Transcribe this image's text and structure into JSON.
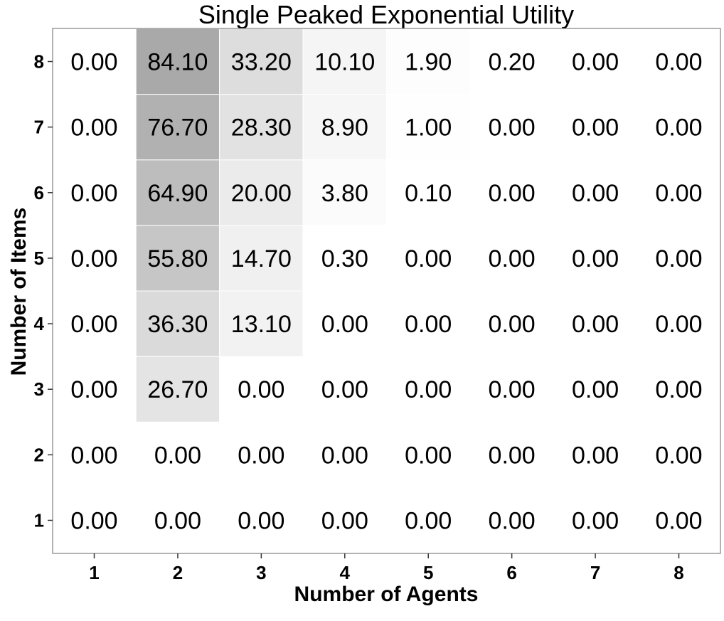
{
  "chart_data": {
    "type": "heatmap",
    "title": "Single Peaked Exponential Utility",
    "xlabel": "Number of Agents",
    "ylabel": "Number of Items",
    "x_categories": [
      "1",
      "2",
      "3",
      "4",
      "5",
      "6",
      "7",
      "8"
    ],
    "y_categories": [
      "1",
      "2",
      "3",
      "4",
      "5",
      "6",
      "7",
      "8"
    ],
    "value_range": [
      0,
      100
    ],
    "color_low": "#ffffff",
    "color_high": "#999999",
    "grid": true,
    "legend": "none",
    "values": [
      [
        0,
        0,
        0,
        0,
        0,
        0,
        0,
        0
      ],
      [
        0,
        0,
        0,
        0,
        0,
        0,
        0,
        0
      ],
      [
        0,
        26.7,
        0,
        0,
        0,
        0,
        0,
        0
      ],
      [
        0,
        36.3,
        13.1,
        0,
        0,
        0,
        0,
        0
      ],
      [
        0,
        55.8,
        14.7,
        0.3,
        0,
        0,
        0,
        0
      ],
      [
        0,
        64.9,
        20.0,
        3.8,
        0.1,
        0,
        0,
        0
      ],
      [
        0,
        76.7,
        28.3,
        8.9,
        1.0,
        0,
        0,
        0
      ],
      [
        0,
        84.1,
        33.2,
        10.1,
        1.9,
        0.2,
        0,
        0
      ]
    ],
    "labels": [
      [
        "0.00",
        "0.00",
        "0.00",
        "0.00",
        "0.00",
        "0.00",
        "0.00",
        "0.00"
      ],
      [
        "0.00",
        "0.00",
        "0.00",
        "0.00",
        "0.00",
        "0.00",
        "0.00",
        "0.00"
      ],
      [
        "0.00",
        "26.70",
        "0.00",
        "0.00",
        "0.00",
        "0.00",
        "0.00",
        "0.00"
      ],
      [
        "0.00",
        "36.30",
        "13.10",
        "0.00",
        "0.00",
        "0.00",
        "0.00",
        "0.00"
      ],
      [
        "0.00",
        "55.80",
        "14.70",
        "0.30",
        "0.00",
        "0.00",
        "0.00",
        "0.00"
      ],
      [
        "0.00",
        "64.90",
        "20.00",
        "3.80",
        "0.10",
        "0.00",
        "0.00",
        "0.00"
      ],
      [
        "0.00",
        "76.70",
        "28.30",
        "8.90",
        "1.00",
        "0.00",
        "0.00",
        "0.00"
      ],
      [
        "0.00",
        "84.10",
        "33.20",
        "10.10",
        "1.90",
        "0.20",
        "0.00",
        "0.00"
      ]
    ]
  }
}
